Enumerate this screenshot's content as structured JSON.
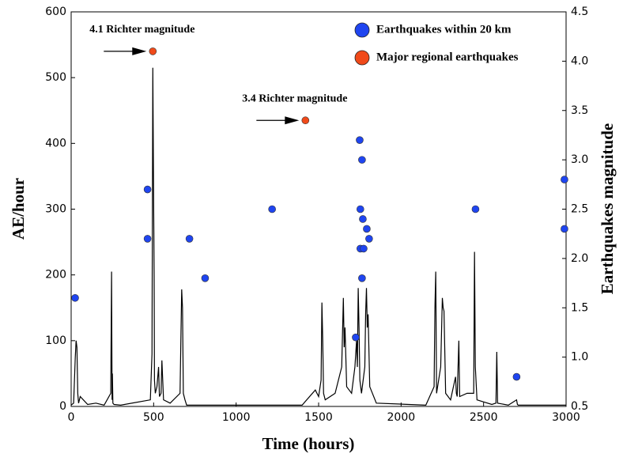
{
  "chart_data": {
    "type": "line",
    "xlabel": "Time (hours)",
    "ylabel": "AE/hour",
    "y2label": "Earthquakes magnitude",
    "xlim": [
      0,
      3000
    ],
    "xticks": [
      0,
      500,
      1000,
      1500,
      2000,
      2500,
      3000
    ],
    "ylim": [
      0,
      600
    ],
    "yticks": [
      0,
      100,
      200,
      300,
      400,
      500,
      600
    ],
    "y2lim": [
      0.5,
      4.5
    ],
    "y2ticks": [
      0.5,
      {
        "value": 1,
        "label": "1.0"
      },
      1.5,
      {
        "value": 2,
        "label": "2.0"
      },
      2.5,
      {
        "value": 3,
        "label": "3.0"
      },
      3.5,
      {
        "value": 4,
        "label": "4.0"
      },
      4.5
    ],
    "legend": "upper right",
    "annotations": [
      "4.1 Richter magnitude",
      "3.4 Richter magnitude"
    ],
    "series": [
      {
        "type": "line",
        "color": "#000000",
        "x": [
          0,
          15,
          25,
          30,
          35,
          40,
          45,
          55,
          100,
          150,
          200,
          240,
          245,
          248,
          250,
          253,
          260,
          300,
          480,
          490,
          495,
          500,
          503,
          505,
          510,
          520,
          530,
          535,
          545,
          550,
          560,
          600,
          660,
          665,
          670,
          675,
          680,
          690,
          700,
          1400,
          1480,
          1500,
          1515,
          1520,
          1525,
          1530,
          1540,
          1600,
          1620,
          1640,
          1650,
          1655,
          1660,
          1670,
          1700,
          1720,
          1730,
          1735,
          1740,
          1745,
          1750,
          1760,
          1780,
          1785,
          1790,
          1795,
          1800,
          1810,
          1850,
          2150,
          2200,
          2205,
          2210,
          2215,
          2240,
          2250,
          2255,
          2260,
          2270,
          2300,
          2330,
          2335,
          2340,
          2350,
          2355,
          2400,
          2440,
          2445,
          2450,
          2460,
          2550,
          2575,
          2580,
          2585,
          2650,
          2700,
          2705,
          2710,
          2800,
          3000
        ],
        "values": [
          2,
          5,
          75,
          100,
          90,
          20,
          5,
          15,
          3,
          5,
          2,
          20,
          205,
          10,
          50,
          5,
          3,
          2,
          10,
          80,
          515,
          310,
          200,
          40,
          20,
          30,
          60,
          15,
          20,
          70,
          10,
          5,
          20,
          100,
          178,
          150,
          20,
          10,
          2,
          2,
          25,
          15,
          40,
          158,
          100,
          20,
          10,
          20,
          40,
          60,
          165,
          90,
          120,
          30,
          20,
          60,
          100,
          60,
          180,
          120,
          40,
          20,
          60,
          140,
          180,
          120,
          140,
          30,
          5,
          2,
          30,
          150,
          205,
          20,
          60,
          165,
          150,
          145,
          20,
          10,
          45,
          20,
          15,
          100,
          15,
          20,
          20,
          235,
          60,
          10,
          3,
          5,
          83,
          5,
          2,
          10,
          3,
          2,
          2,
          2
        ]
      },
      {
        "type": "scatter",
        "axis": "y2",
        "name": "Earthquakes within 20 km",
        "color": "#1f45f0",
        "x": [
          24,
          463,
          463,
          717,
          812,
          1218,
          1725,
          1749,
          1763,
          1753,
          1763,
          1768,
          1753,
          1773,
          1792,
          1806,
          2451,
          2700,
          2990,
          2990
        ],
        "values": [
          1.6,
          2.7,
          2.2,
          2.2,
          1.8,
          2.5,
          1.2,
          3.2,
          1.8,
          2.5,
          3.0,
          2.4,
          2.1,
          2.1,
          2.3,
          2.2,
          2.5,
          0.8,
          2.3,
          2.8
        ]
      },
      {
        "type": "scatter",
        "axis": "y2",
        "name": "Major regional earthquakes",
        "color": "#f04a1a",
        "x": [
          495,
          1420
        ],
        "values": [
          4.1,
          3.4
        ]
      }
    ]
  }
}
